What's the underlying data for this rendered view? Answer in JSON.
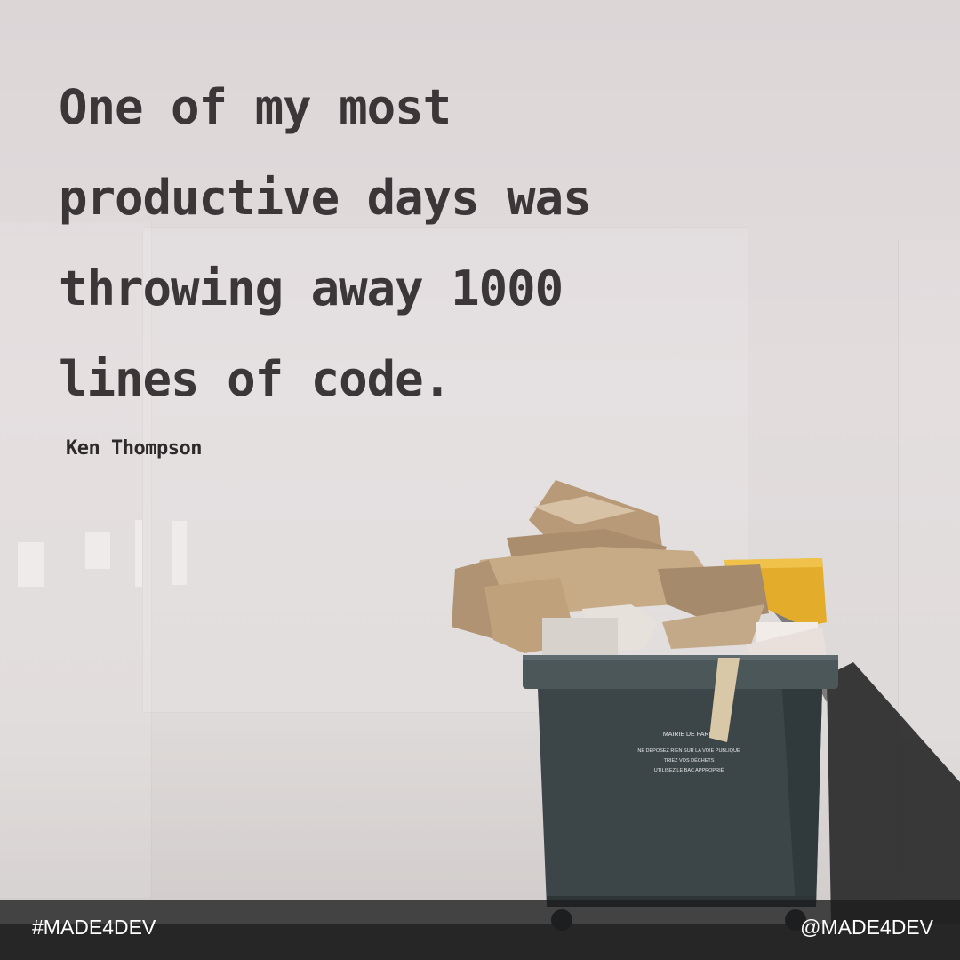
{
  "quote": {
    "lines": [
      "One of my most",
      "productive days was",
      "throwing away 1000",
      "lines of code."
    ],
    "author": "Ken Thompson"
  },
  "bin": {
    "sign_title": "MAIRIE DE PARIS",
    "sign_line_1": "NE DÉPOSEZ RIEN SUR LA VOIE PUBLIQUE",
    "sign_line_2": "TRIEZ VOS DÉCHETS",
    "sign_line_3": "UTILISEZ LE BAC APPROPRIÉ"
  },
  "footer": {
    "hashtag": "#MADE4DEV",
    "handle": "@MADE4DEV"
  },
  "colors": {
    "wall": "#dcd6d7",
    "text": "#3b3738",
    "bin": "#3c4649",
    "lid_yellow": "#e3ac2b",
    "footer_bar": "#1c1c1e"
  }
}
